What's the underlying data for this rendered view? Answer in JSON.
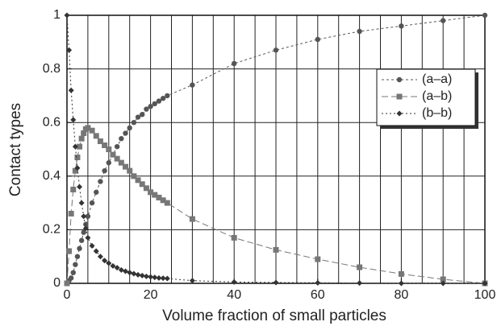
{
  "chart_data": {
    "type": "line",
    "xlabel": "Volume fraction of small particles",
    "ylabel": "Contact types",
    "xlim": [
      0,
      100
    ],
    "ylim": [
      0,
      1
    ],
    "xticks": [
      0,
      20,
      40,
      60,
      80,
      100
    ],
    "yticks": [
      0,
      0.2,
      0.4,
      0.6,
      0.8,
      1
    ],
    "xgrid": [
      0,
      5,
      10,
      15,
      20,
      25,
      30,
      35,
      40,
      45,
      50,
      55,
      60,
      65,
      70,
      75,
      80,
      85,
      90,
      95,
      100
    ],
    "ygrid": [
      0,
      0.2,
      0.4,
      0.6,
      0.8,
      1
    ],
    "legend": "upper right",
    "x": [
      0,
      0.5,
      1,
      1.5,
      2,
      2.5,
      3,
      3.5,
      4,
      4.5,
      5,
      6,
      7,
      8,
      9,
      10,
      11,
      12,
      13,
      14,
      15,
      16,
      17,
      18,
      19,
      20,
      21,
      22,
      23,
      24,
      30,
      40,
      50,
      60,
      70,
      80,
      90,
      100
    ],
    "series": [
      {
        "name": "(a–a)",
        "color": "#555555",
        "marker": "circle",
        "dash": "3,3",
        "values": [
          0,
          0.01,
          0.02,
          0.04,
          0.07,
          0.1,
          0.13,
          0.16,
          0.19,
          0.22,
          0.25,
          0.3,
          0.34,
          0.38,
          0.42,
          0.45,
          0.48,
          0.51,
          0.54,
          0.56,
          0.58,
          0.6,
          0.62,
          0.63,
          0.65,
          0.66,
          0.67,
          0.68,
          0.69,
          0.7,
          0.74,
          0.82,
          0.87,
          0.91,
          0.94,
          0.96,
          0.98,
          1
        ]
      },
      {
        "name": "(a–b)",
        "color": "#777777",
        "marker": "square",
        "dash": "8,4",
        "values": [
          0,
          0.12,
          0.26,
          0.35,
          0.42,
          0.47,
          0.51,
          0.54,
          0.56,
          0.575,
          0.58,
          0.57,
          0.55,
          0.53,
          0.515,
          0.5,
          0.48,
          0.465,
          0.45,
          0.435,
          0.42,
          0.4,
          0.385,
          0.37,
          0.355,
          0.34,
          0.33,
          0.32,
          0.31,
          0.3,
          0.24,
          0.17,
          0.125,
          0.09,
          0.06,
          0.035,
          0.015,
          0
        ]
      },
      {
        "name": "(b–b)",
        "color": "#333333",
        "marker": "diamond",
        "dash": "2,3",
        "values": [
          1,
          0.87,
          0.72,
          0.61,
          0.51,
          0.43,
          0.36,
          0.3,
          0.25,
          0.205,
          0.17,
          0.14,
          0.12,
          0.1,
          0.085,
          0.075,
          0.065,
          0.058,
          0.05,
          0.045,
          0.04,
          0.036,
          0.032,
          0.029,
          0.026,
          0.024,
          0.022,
          0.02,
          0.019,
          0.018,
          0.01,
          0.005,
          0.003,
          0.002,
          0.001,
          0,
          0,
          0
        ]
      }
    ]
  }
}
